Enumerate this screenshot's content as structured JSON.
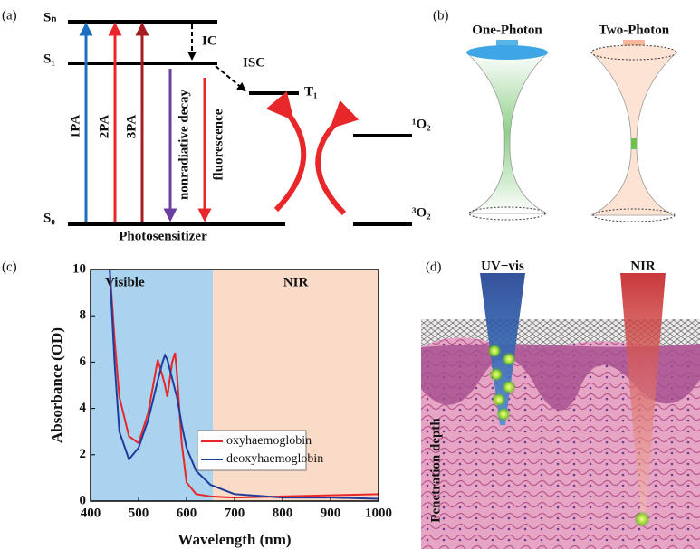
{
  "panel_labels": [
    "(a)",
    "(b)",
    "(c)",
    "(d)"
  ],
  "jablonski": {
    "levels": {
      "sn": "Sₙ",
      "s1": "S₁",
      "s0": "S₀",
      "t1": "T₁",
      "o2_singlet": "¹O₂",
      "o2_triplet": "³O₂"
    },
    "transitions": {
      "ic": "IC",
      "isc": "ISC",
      "one_pa": "1PA",
      "two_pa": "2PA",
      "three_pa": "3PA",
      "nonradiative": "nonradiative decay",
      "fluorescence": "fluorescence"
    },
    "molecule": "Photosensitizer"
  },
  "photon": {
    "left": "One-Photon",
    "right": "Two-Photon"
  },
  "chart_data": {
    "type": "line",
    "x_label": "Wavelength (nm)",
    "y_label": "Absorbance (OD)",
    "x": [
      440,
      450,
      460,
      480,
      500,
      520,
      540,
      550,
      555,
      560,
      570,
      576,
      580,
      590,
      600,
      620,
      650,
      700,
      800,
      900,
      1000
    ],
    "series": [
      {
        "name": "oxyhaemoglobin",
        "color": "#e8272a",
        "values": [
          10,
          7,
          4.5,
          2.8,
          2.5,
          3.8,
          6.1,
          5.4,
          5.0,
          4.5,
          6.0,
          6.4,
          5.5,
          2.5,
          0.8,
          0.3,
          0.2,
          0.15,
          0.2,
          0.25,
          0.3
        ]
      },
      {
        "name": "deoxyhaemoglobin",
        "color": "#1f3c9a",
        "values": [
          10,
          6,
          3,
          1.8,
          2.3,
          3.5,
          5.2,
          6.0,
          6.3,
          6.1,
          5.3,
          4.8,
          4.5,
          3.3,
          2.3,
          1.3,
          0.7,
          0.3,
          0.15,
          0.15,
          0.1
        ]
      }
    ],
    "regions": [
      {
        "name": "Visible",
        "range": [
          400,
          655
        ],
        "color": "#a9d3ef"
      },
      {
        "name": "NIR",
        "range": [
          655,
          1000
        ],
        "color": "#fadbc8"
      }
    ],
    "xlim": [
      400,
      1000
    ],
    "xticks": [
      400,
      500,
      600,
      700,
      800,
      900,
      1000
    ],
    "ylim": [
      0,
      10
    ],
    "yticks": [
      0,
      2,
      4,
      6,
      8,
      10
    ]
  },
  "penetration": {
    "left_beam": "UV−vis",
    "right_beam": "NIR",
    "axis": "Penetration depth"
  }
}
